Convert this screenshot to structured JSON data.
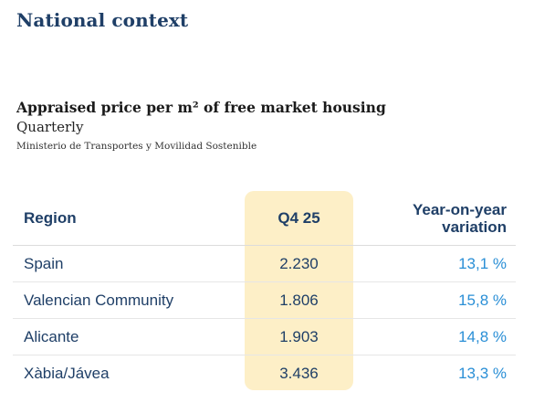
{
  "section": {
    "title": "National context"
  },
  "chart": {
    "title": "Appraised price per m² of free market housing",
    "subtitle": "Quarterly",
    "source": "Ministerio de Transportes y Movilidad Sostenible"
  },
  "table": {
    "headers": {
      "region": "Region",
      "value": "Q4 25",
      "variation_line1": "Year-on-year",
      "variation_line2": "variation"
    },
    "rows": [
      {
        "region": "Spain",
        "value": "2.230",
        "variation": "13,1 %"
      },
      {
        "region": "Valencian Community",
        "value": "1.806",
        "variation": "15,8 %"
      },
      {
        "region": "Alicante",
        "value": "1.903",
        "variation": "14,8 %"
      },
      {
        "region": "Xàbia/Jávea",
        "value": "3.436",
        "variation": "13,3 %"
      }
    ]
  },
  "colors": {
    "heading": "#1f3f67",
    "variation": "#2a8fd6",
    "highlight": "#fdefc7"
  },
  "chart_data": {
    "type": "table",
    "columns": [
      "Region",
      "Q4 25",
      "Year-on-year variation"
    ],
    "rows": [
      [
        "Spain",
        2230,
        13.1
      ],
      [
        "Valencian Community",
        1806,
        15.8
      ],
      [
        "Alicante",
        1903,
        14.8
      ],
      [
        "Xàbia/Jávea",
        3436,
        13.3
      ]
    ],
    "title": "Appraised price per m² of free market housing",
    "subtitle": "Quarterly"
  }
}
